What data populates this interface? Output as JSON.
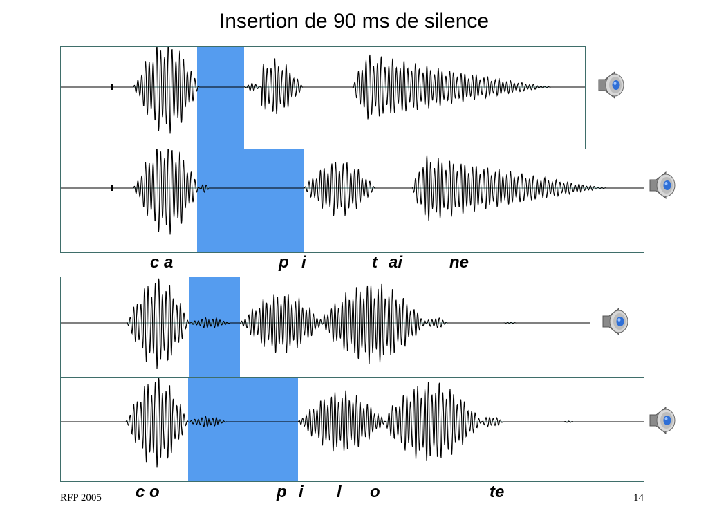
{
  "title": "Insertion de 90 ms de silence",
  "colors": {
    "silence": "#559cef",
    "waveform": "#000000",
    "baseline": "#3f6e6a",
    "frame": "#3f6e6a"
  },
  "panels": [
    {
      "name": "capitaine-original",
      "speaker_icon": "speaker-icon"
    },
    {
      "name": "capitaine-silence-inserted",
      "speaker_icon": "speaker-icon"
    },
    {
      "name": "copilote-original",
      "speaker_icon": "speaker-icon"
    },
    {
      "name": "copilote-silence-inserted",
      "speaker_icon": "speaker-icon"
    }
  ],
  "labels_capitaine": [
    "c a",
    "p",
    "i",
    "t",
    "ai",
    "ne"
  ],
  "labels_copilote": [
    "c o",
    "p",
    "i",
    "l",
    "o",
    "te"
  ],
  "footer": {
    "left": "RFP 2005",
    "right": "14"
  }
}
